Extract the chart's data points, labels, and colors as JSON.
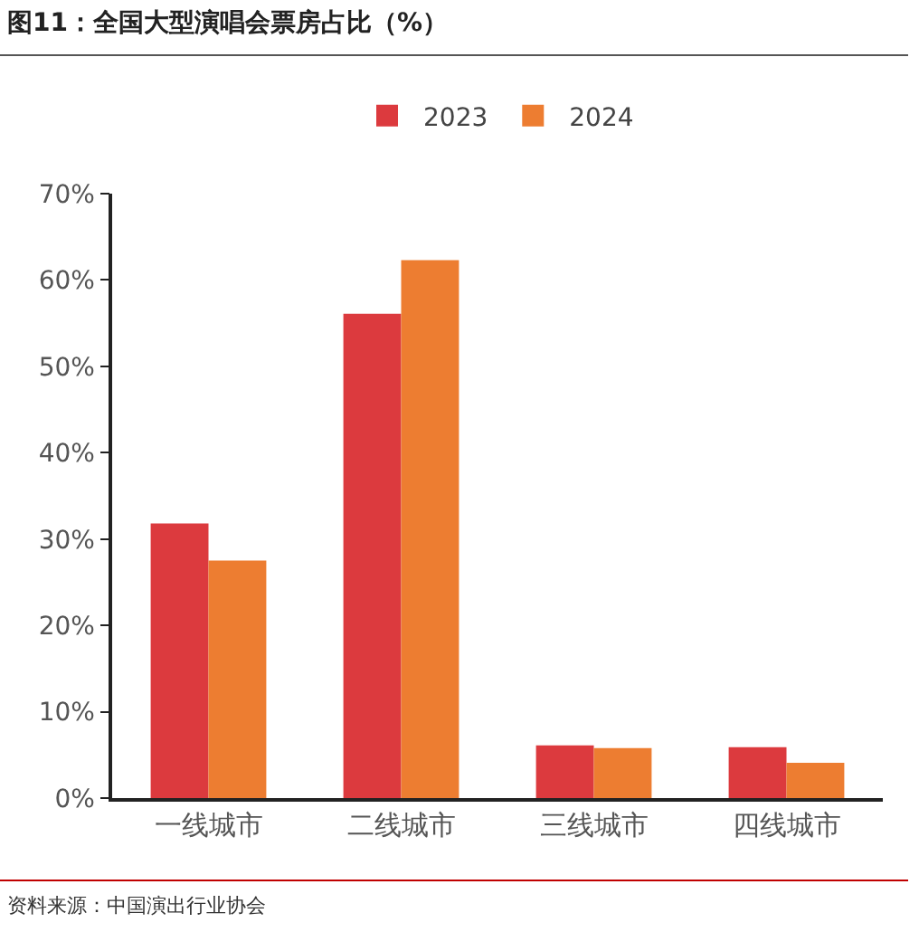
{
  "chart_data": {
    "type": "bar",
    "title": "图11：全国大型演唱会票房占比（%）",
    "categories": [
      "一线城市",
      "二线城市",
      "三线城市",
      "四线城市"
    ],
    "series": [
      {
        "name": "2023",
        "color": "#dc3a3e",
        "values": [
          31.8,
          56.1,
          6.1,
          5.9
        ]
      },
      {
        "name": "2024",
        "color": "#ed7d31",
        "values": [
          27.5,
          62.3,
          5.8,
          4.1
        ]
      }
    ],
    "ylim": [
      0,
      70
    ],
    "yticks": [
      {
        "value": 0,
        "label": "0%"
      },
      {
        "value": 10,
        "label": "10%"
      },
      {
        "value": 20,
        "label": "20%"
      },
      {
        "value": 30,
        "label": "30%"
      },
      {
        "value": 40,
        "label": "40%"
      },
      {
        "value": 50,
        "label": "50%"
      },
      {
        "value": 60,
        "label": "60%"
      },
      {
        "value": 70,
        "label": "70%"
      }
    ],
    "grid": false,
    "legend": "top",
    "annotations": [
      "资料来源：中国演出行业协会"
    ]
  }
}
